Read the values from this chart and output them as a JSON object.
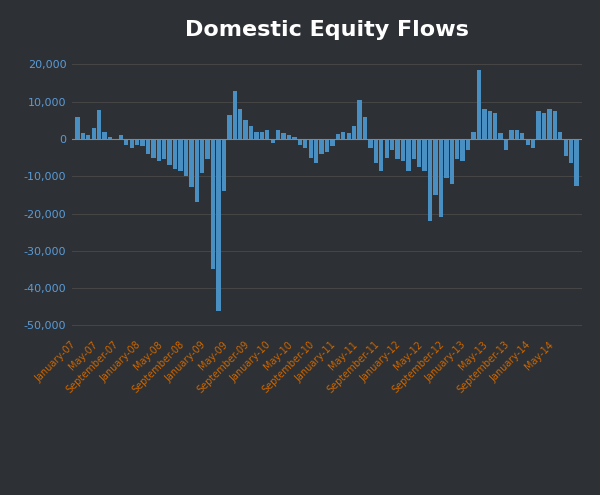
{
  "title": "Domestic Equity Flows",
  "background_color": "#2d3035",
  "bar_color": "#4a8fc2",
  "title_color": "#ffffff",
  "ytick_color": "#5b9bd5",
  "label_color": "#cc6600",
  "grid_color": "#4a4a4a",
  "zero_line_color": "#888888",
  "ylim": [
    -53000,
    24000
  ],
  "yticks": [
    -50000,
    -40000,
    -30000,
    -20000,
    -10000,
    0,
    10000,
    20000
  ],
  "monthly_values": [
    5800,
    1500,
    1000,
    3000,
    7800,
    2000,
    500,
    -200,
    1200,
    -1500,
    -2500,
    -1500,
    -2000,
    -4000,
    -5000,
    -6000,
    -5500,
    -7000,
    -8000,
    -8500,
    -10000,
    -13000,
    -17000,
    -9000,
    -5500,
    -35000,
    -46000,
    -14000,
    6500,
    13000,
    8000,
    5000,
    3500,
    2000,
    2000,
    2500,
    -1000,
    2500,
    1500,
    1000,
    400,
    -1500,
    -2500,
    -5000,
    -6500,
    -4000,
    -3500,
    -2000,
    1300,
    2000,
    1500,
    3500,
    10500,
    6000,
    -2500,
    -6500,
    -8500,
    -5000,
    -3000,
    -5500,
    -6000,
    -8500,
    -5500,
    -7500,
    -8500,
    -22000,
    -15000,
    -21000,
    -10500,
    -12000,
    -5500,
    -6000,
    -3000,
    2000,
    18500,
    8000,
    7500,
    7000,
    1500,
    -3000,
    2500,
    2500,
    1500,
    -1500,
    -2500,
    7500,
    7000,
    8000,
    7500,
    2000,
    -4500,
    -6500,
    -12500
  ],
  "tick_labels": [
    [
      "January-07",
      0
    ],
    [
      "May-07",
      4
    ],
    [
      "September-07",
      8
    ],
    [
      "January-08",
      12
    ],
    [
      "May-08",
      16
    ],
    [
      "September-08",
      20
    ],
    [
      "January-09",
      24
    ],
    [
      "May-09",
      28
    ],
    [
      "September-09",
      32
    ],
    [
      "January-10",
      36
    ],
    [
      "May-10",
      40
    ],
    [
      "September-10",
      44
    ],
    [
      "January-11",
      48
    ],
    [
      "May-11",
      52
    ],
    [
      "September-11",
      56
    ],
    [
      "January-12",
      60
    ],
    [
      "May-12",
      64
    ],
    [
      "September-12",
      68
    ],
    [
      "January-13",
      72
    ],
    [
      "May-13",
      76
    ],
    [
      "September-13",
      80
    ],
    [
      "January-14",
      84
    ],
    [
      "May-14",
      88
    ]
  ],
  "title_fontsize": 16,
  "ytick_fontsize": 8,
  "xtick_fontsize": 7
}
